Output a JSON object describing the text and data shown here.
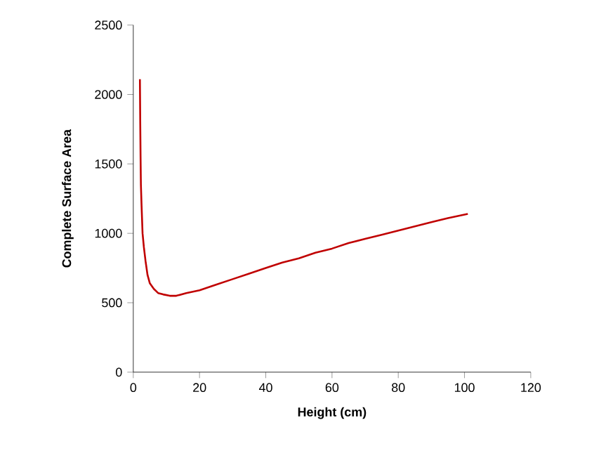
{
  "chart_data": {
    "type": "line",
    "xlabel": "Height (cm)",
    "ylabel": "Complete Surface Area",
    "series": [
      {
        "color": "#c00000",
        "x": [
          2,
          2.1,
          2.2,
          2.3,
          2.5,
          2.8,
          3.2,
          3.7,
          4.3,
          5,
          6.2,
          7.5,
          9,
          11,
          13,
          16,
          20,
          25,
          30,
          35,
          40,
          45,
          50,
          55,
          60,
          65,
          70,
          75,
          80,
          85,
          90,
          95,
          101
        ],
        "values": [
          2110,
          1800,
          1550,
          1350,
          1200,
          1000,
          900,
          800,
          700,
          640,
          600,
          570,
          560,
          550,
          550,
          570,
          590,
          630,
          670,
          710,
          750,
          790,
          820,
          860,
          890,
          930,
          960,
          990,
          1020,
          1050,
          1080,
          1110,
          1140
        ]
      }
    ],
    "xlim": [
      0,
      120
    ],
    "ylim": [
      0,
      2500
    ],
    "xticks": [
      0,
      20,
      40,
      60,
      80,
      100,
      120
    ],
    "yticks": [
      0,
      500,
      1000,
      1500,
      2000,
      2500
    ],
    "grid": false,
    "marker": "none",
    "line_style": "solid"
  }
}
